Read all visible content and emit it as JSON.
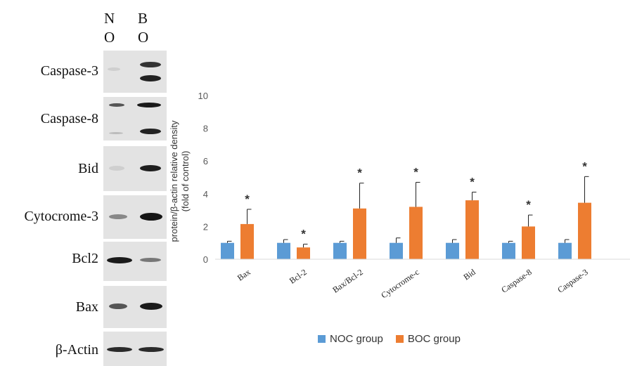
{
  "blot": {
    "lanes": [
      {
        "line1": "N",
        "line2": "O"
      },
      {
        "line1": "B",
        "line2": "O"
      }
    ],
    "rows": [
      {
        "label": "Caspase-3"
      },
      {
        "label": "Caspase-8"
      },
      {
        "label": "Bid"
      },
      {
        "label": "Cytocrome-3"
      },
      {
        "label": "Bcl2"
      },
      {
        "label": "Bax"
      },
      {
        "label": "β-Actin"
      }
    ]
  },
  "chart_data": {
    "type": "bar",
    "categories": [
      "Bax",
      "Bcl-2",
      "Bax/Bcl-2",
      "Cytocrome-c",
      "Bid",
      "Caspase-8",
      "Caspase-3"
    ],
    "series": [
      {
        "name": "NOC group",
        "color": "#5b9bd5",
        "values": [
          1.0,
          1.0,
          1.0,
          1.0,
          1.0,
          1.0,
          1.0
        ],
        "errors": [
          0.1,
          0.2,
          0.1,
          0.3,
          0.2,
          0.1,
          0.2
        ]
      },
      {
        "name": "BOC group",
        "color": "#ed7d31",
        "values": [
          2.15,
          0.72,
          3.1,
          3.2,
          3.6,
          2.0,
          3.45
        ],
        "errors": [
          0.9,
          0.2,
          1.55,
          1.5,
          0.5,
          0.7,
          1.6
        ]
      }
    ],
    "significance": [
      "*",
      "*",
      "*",
      "*",
      "*",
      "*",
      "*"
    ],
    "ylabel_line1": "protein/β-actin relative density",
    "ylabel_line2": "(fold of control)",
    "ylim": [
      0,
      10
    ],
    "yticks": [
      "0",
      "2",
      "4",
      "6",
      "8",
      "10"
    ],
    "grid": false,
    "legend": "bottom"
  }
}
